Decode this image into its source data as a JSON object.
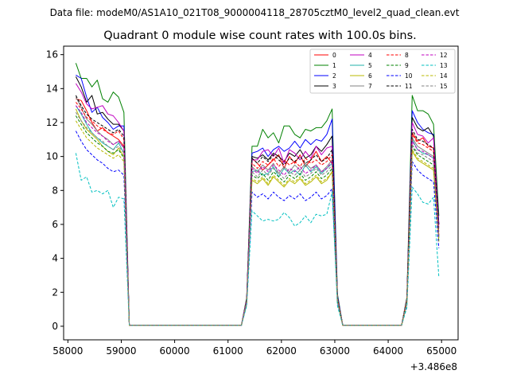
{
  "figure": {
    "suptitle": "Data file: modeM0/AS1A10_021T08_9000004118_28705cztM0_level2_quad_clean.evt"
  },
  "chart_data": {
    "type": "line",
    "title": "Quadrant 0 module wise count rates with 100.0s bins.",
    "xlabel": "",
    "ylabel": "",
    "x_offset_label": "+3.486e8",
    "xlim": [
      57920,
      65310
    ],
    "ylim": [
      -0.8,
      16.5
    ],
    "xticks": [
      58000,
      59000,
      60000,
      61000,
      62000,
      63000,
      64000,
      65000
    ],
    "yticks": [
      0,
      2,
      4,
      6,
      8,
      10,
      12,
      14,
      16
    ],
    "grid": false,
    "legend_position": "top-right",
    "legend_columns": 4,
    "x": [
      58150,
      58250,
      58350,
      58450,
      58550,
      58650,
      58750,
      58850,
      58950,
      59050,
      59150,
      59250,
      61150,
      61250,
      61350,
      61450,
      61550,
      61650,
      61750,
      61850,
      61950,
      62050,
      62150,
      62250,
      62350,
      62450,
      62550,
      62650,
      62750,
      62850,
      62950,
      63050,
      63150,
      63250,
      64150,
      64250,
      64350,
      64450,
      64550,
      64650,
      64750,
      64850,
      64950
    ],
    "series": [
      {
        "name": "0",
        "color": "#ff0000",
        "dash": "solid",
        "values": [
          13.4,
          13.3,
          12.7,
          12.0,
          11.5,
          11.7,
          11.4,
          11.2,
          11.0,
          10.6,
          0.05,
          0.05,
          0.05,
          0.05,
          1.5,
          9.9,
          9.6,
          9.2,
          9.5,
          9.8,
          10.1,
          9.3,
          10.0,
          9.6,
          10.1,
          9.4,
          9.8,
          10.3,
          9.7,
          10.0,
          9.6,
          1.6,
          0.05,
          0.05,
          0.05,
          0.05,
          1.5,
          11.4,
          10.9,
          11.1,
          10.6,
          10.5,
          5.3
        ]
      },
      {
        "name": "1",
        "color": "#008000",
        "dash": "solid",
        "values": [
          15.5,
          14.6,
          14.6,
          14.1,
          14.5,
          13.4,
          13.2,
          13.8,
          13.5,
          12.6,
          0.05,
          0.05,
          0.05,
          0.05,
          1.7,
          10.6,
          10.6,
          11.6,
          11.1,
          11.4,
          10.8,
          11.8,
          11.8,
          11.3,
          11.1,
          11.6,
          11.5,
          11.7,
          11.7,
          12.1,
          12.8,
          1.9,
          0.05,
          0.05,
          0.05,
          0.05,
          1.7,
          13.6,
          12.7,
          12.7,
          12.5,
          11.9,
          6.5
        ]
      },
      {
        "name": "2",
        "color": "#0000ff",
        "dash": "solid",
        "values": [
          14.8,
          14.6,
          13.5,
          12.6,
          12.9,
          12.3,
          12.0,
          11.6,
          11.8,
          11.8,
          0.05,
          0.05,
          0.05,
          0.05,
          1.6,
          10.2,
          10.3,
          10.5,
          10.0,
          10.4,
          10.6,
          10.3,
          10.5,
          10.9,
          10.5,
          11.0,
          10.7,
          11.0,
          10.9,
          11.3,
          12.2,
          1.8,
          0.05,
          0.05,
          0.05,
          0.05,
          1.6,
          12.7,
          12.0,
          11.6,
          11.4,
          11.3,
          6.0
        ]
      },
      {
        "name": "3",
        "color": "#000000",
        "dash": "solid",
        "values": [
          14.7,
          14.1,
          13.2,
          13.6,
          12.5,
          12.6,
          12.2,
          11.9,
          11.9,
          11.5,
          0.05,
          0.05,
          0.05,
          0.05,
          1.6,
          10.0,
          9.9,
          10.1,
          9.8,
          10.2,
          10.0,
          9.7,
          10.2,
          10.0,
          10.4,
          9.9,
          10.1,
          10.6,
          10.3,
          10.7,
          11.2,
          1.7,
          0.05,
          0.05,
          0.05,
          0.05,
          1.6,
          12.3,
          11.7,
          11.5,
          11.7,
          11.2,
          6.0
        ]
      },
      {
        "name": "4",
        "color": "#c000c0",
        "dash": "solid",
        "values": [
          14.3,
          13.8,
          13.1,
          12.8,
          12.9,
          13.0,
          12.5,
          12.4,
          12.0,
          11.5,
          0.05,
          0.05,
          0.05,
          0.05,
          1.6,
          9.8,
          9.8,
          10.3,
          10.4,
          10.0,
          10.5,
          9.6,
          10.4,
          10.2,
          9.8,
          10.3,
          9.9,
          10.6,
          10.1,
          10.5,
          10.6,
          1.7,
          0.05,
          0.05,
          0.05,
          0.05,
          1.6,
          12.0,
          11.3,
          11.2,
          10.8,
          11.1,
          5.8
        ]
      },
      {
        "name": "5",
        "color": "#20b2aa",
        "dash": "solid",
        "values": [
          13.0,
          12.5,
          11.9,
          11.4,
          11.1,
          10.8,
          10.6,
          10.4,
          10.8,
          10.2,
          0.05,
          0.05,
          0.05,
          0.05,
          1.5,
          9.1,
          9.2,
          8.9,
          9.0,
          9.4,
          8.8,
          9.3,
          9.0,
          9.2,
          8.9,
          9.5,
          9.1,
          9.4,
          9.0,
          9.3,
          9.6,
          1.6,
          0.05,
          0.05,
          0.05,
          0.05,
          1.5,
          11.0,
          10.4,
          10.2,
          10.1,
          9.9,
          5.2
        ]
      },
      {
        "name": "6",
        "color": "#b8b800",
        "dash": "solid",
        "values": [
          12.8,
          12.1,
          11.6,
          11.3,
          11.0,
          10.6,
          10.3,
          10.1,
          10.5,
          10.0,
          0.05,
          0.05,
          0.05,
          0.05,
          1.4,
          8.6,
          8.4,
          8.7,
          8.3,
          8.8,
          8.5,
          8.2,
          8.6,
          8.4,
          8.7,
          8.3,
          8.5,
          8.8,
          8.4,
          8.6,
          9.1,
          1.5,
          0.05,
          0.05,
          0.05,
          0.05,
          1.4,
          10.3,
          9.8,
          9.6,
          9.4,
          9.2,
          5.0
        ]
      },
      {
        "name": "7",
        "color": "#808080",
        "dash": "solid",
        "values": [
          13.5,
          12.9,
          12.2,
          11.9,
          11.5,
          11.2,
          11.0,
          10.7,
          10.9,
          10.5,
          0.05,
          0.05,
          0.05,
          0.05,
          1.5,
          9.4,
          9.1,
          9.5,
          9.2,
          9.6,
          9.0,
          9.4,
          9.1,
          9.5,
          9.2,
          9.6,
          9.3,
          9.5,
          9.1,
          9.4,
          9.8,
          1.6,
          0.05,
          0.05,
          0.05,
          0.05,
          1.5,
          11.1,
          10.6,
          10.4,
          10.2,
          10.0,
          5.3
        ]
      },
      {
        "name": "8",
        "color": "#ff0000",
        "dash": "dashed",
        "values": [
          13.2,
          12.8,
          12.3,
          12.1,
          11.8,
          11.6,
          11.4,
          11.3,
          11.5,
          11.0,
          0.05,
          0.05,
          0.05,
          0.05,
          1.5,
          9.6,
          9.3,
          9.7,
          9.5,
          9.9,
          9.4,
          9.8,
          9.5,
          9.7,
          9.4,
          9.9,
          9.6,
          9.8,
          9.5,
          9.7,
          10.1,
          1.6,
          0.05,
          0.05,
          0.05,
          0.05,
          1.5,
          11.3,
          10.8,
          10.7,
          10.5,
          10.3,
          5.4
        ]
      },
      {
        "name": "9",
        "color": "#008000",
        "dash": "dashed",
        "values": [
          12.4,
          11.9,
          11.4,
          11.1,
          10.8,
          10.6,
          10.3,
          10.2,
          10.4,
          9.9,
          0.05,
          0.05,
          0.05,
          0.05,
          1.4,
          8.9,
          8.7,
          9.0,
          8.6,
          9.1,
          8.8,
          8.5,
          8.9,
          8.7,
          9.0,
          8.6,
          8.8,
          9.1,
          8.7,
          8.9,
          9.3,
          1.5,
          0.05,
          0.05,
          0.05,
          0.05,
          1.4,
          10.6,
          10.1,
          9.9,
          9.7,
          9.5,
          5.1
        ]
      },
      {
        "name": "10",
        "color": "#0000ff",
        "dash": "dashed",
        "values": [
          11.5,
          10.9,
          10.4,
          10.1,
          9.8,
          9.6,
          9.3,
          9.1,
          9.2,
          8.9,
          0.05,
          0.05,
          0.05,
          0.05,
          1.3,
          7.9,
          7.6,
          7.8,
          7.5,
          7.9,
          7.6,
          7.4,
          7.7,
          7.5,
          7.8,
          7.4,
          7.6,
          7.9,
          7.5,
          7.7,
          8.1,
          1.4,
          0.05,
          0.05,
          0.05,
          0.05,
          1.3,
          9.7,
          9.2,
          8.9,
          8.7,
          8.5,
          4.6
        ]
      },
      {
        "name": "11",
        "color": "#000000",
        "dash": "dashed",
        "values": [
          13.6,
          13.0,
          12.5,
          12.2,
          12.0,
          11.8,
          11.6,
          11.4,
          11.6,
          11.2,
          0.05,
          0.05,
          0.05,
          0.05,
          1.6,
          9.9,
          9.6,
          10.0,
          9.7,
          10.1,
          9.8,
          9.5,
          9.9,
          9.7,
          10.0,
          9.6,
          9.8,
          10.1,
          9.7,
          9.9,
          10.4,
          1.7,
          0.05,
          0.05,
          0.05,
          0.05,
          1.6,
          11.6,
          11.0,
          10.9,
          10.7,
          10.5,
          5.6
        ]
      },
      {
        "name": "12",
        "color": "#c000c0",
        "dash": "dashed",
        "values": [
          13.0,
          12.6,
          12.0,
          11.7,
          11.4,
          11.2,
          10.9,
          10.7,
          10.9,
          10.5,
          0.05,
          0.05,
          0.05,
          0.05,
          1.5,
          9.3,
          9.0,
          9.4,
          9.1,
          9.5,
          9.2,
          8.9,
          9.3,
          9.1,
          9.4,
          9.0,
          9.2,
          9.5,
          9.1,
          9.3,
          9.7,
          1.6,
          0.05,
          0.05,
          0.05,
          0.05,
          1.5,
          10.9,
          10.4,
          10.3,
          10.1,
          9.9,
          5.3
        ]
      },
      {
        "name": "13",
        "color": "#00c0c0",
        "dash": "dashed",
        "values": [
          10.2,
          8.6,
          8.8,
          7.9,
          8.0,
          7.8,
          8.0,
          7.0,
          7.6,
          7.5,
          0.05,
          0.05,
          0.05,
          0.05,
          1.2,
          6.8,
          6.5,
          6.2,
          6.3,
          6.2,
          6.3,
          6.7,
          6.4,
          5.9,
          6.1,
          6.5,
          6.1,
          6.6,
          6.5,
          6.6,
          7.9,
          1.2,
          0.05,
          0.05,
          0.05,
          0.05,
          1.1,
          8.2,
          7.8,
          7.3,
          7.2,
          7.6,
          2.9
        ]
      },
      {
        "name": "14",
        "color": "#b8b800",
        "dash": "dashed",
        "values": [
          12.1,
          11.6,
          11.1,
          10.8,
          10.5,
          10.3,
          10.1,
          9.9,
          10.1,
          9.7,
          0.05,
          0.05,
          0.05,
          0.05,
          1.4,
          8.7,
          8.5,
          8.8,
          8.4,
          8.9,
          8.6,
          8.3,
          8.7,
          8.5,
          8.8,
          8.4,
          8.6,
          8.9,
          8.5,
          8.7,
          9.1,
          1.5,
          0.05,
          0.05,
          0.05,
          0.05,
          1.4,
          10.4,
          9.9,
          9.7,
          9.5,
          9.3,
          5.0
        ]
      },
      {
        "name": "15",
        "color": "#808080",
        "dash": "dashed",
        "values": [
          12.6,
          12.1,
          11.7,
          11.4,
          11.1,
          10.9,
          10.6,
          10.4,
          10.6,
          10.2,
          0.05,
          0.05,
          0.05,
          0.05,
          1.5,
          9.1,
          8.8,
          9.2,
          8.9,
          9.3,
          9.0,
          8.7,
          9.1,
          8.9,
          9.2,
          8.8,
          9.0,
          9.3,
          8.9,
          9.1,
          9.5,
          1.6,
          0.05,
          0.05,
          0.05,
          0.05,
          1.5,
          10.7,
          10.2,
          10.1,
          9.9,
          9.7,
          5.2
        ]
      }
    ]
  }
}
